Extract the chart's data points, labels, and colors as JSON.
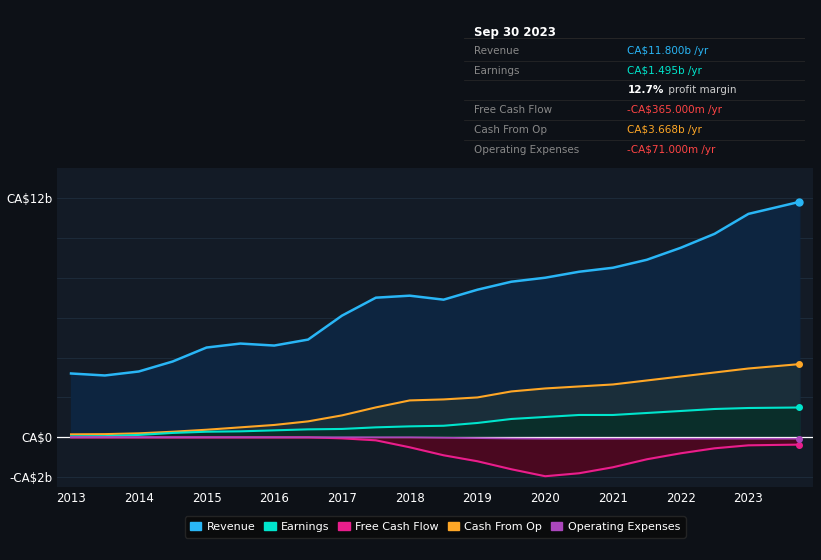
{
  "background_color": "#0d1117",
  "plot_bg_color": "#131b26",
  "grid_color": "#1e2d3d",
  "years": [
    2013,
    2013.5,
    2014,
    2014.5,
    2015,
    2015.5,
    2016,
    2016.5,
    2017,
    2017.5,
    2018,
    2018.5,
    2019,
    2019.5,
    2020,
    2020.5,
    2021,
    2021.5,
    2022,
    2022.5,
    2023,
    2023.75
  ],
  "revenue": [
    3.2,
    3.1,
    3.3,
    3.8,
    4.5,
    4.7,
    4.6,
    4.9,
    6.1,
    7.0,
    7.1,
    6.9,
    7.4,
    7.8,
    8.0,
    8.3,
    8.5,
    8.9,
    9.5,
    10.2,
    11.2,
    11.8
  ],
  "earnings": [
    0.05,
    0.06,
    0.12,
    0.22,
    0.28,
    0.3,
    0.35,
    0.4,
    0.42,
    0.5,
    0.55,
    0.58,
    0.72,
    0.92,
    1.02,
    1.12,
    1.12,
    1.22,
    1.32,
    1.42,
    1.47,
    1.495
  ],
  "free_cash_flow": [
    0.0,
    0.0,
    0.0,
    0.0,
    0.0,
    0.0,
    0.0,
    0.0,
    -0.05,
    -0.15,
    -0.5,
    -0.9,
    -1.2,
    -1.6,
    -1.95,
    -1.8,
    -1.5,
    -1.1,
    -0.8,
    -0.55,
    -0.4,
    -0.365
  ],
  "cash_from_op": [
    0.15,
    0.16,
    0.2,
    0.28,
    0.38,
    0.5,
    0.62,
    0.8,
    1.1,
    1.5,
    1.85,
    1.9,
    2.0,
    2.3,
    2.45,
    2.55,
    2.65,
    2.85,
    3.05,
    3.25,
    3.45,
    3.668
  ],
  "operating_expenses": [
    0.0,
    0.0,
    0.0,
    0.0,
    0.0,
    0.0,
    0.0,
    0.0,
    0.0,
    0.0,
    0.0,
    -0.02,
    -0.04,
    -0.06,
    -0.07,
    -0.07,
    -0.07,
    -0.07,
    -0.07,
    -0.07,
    -0.071,
    -0.071
  ],
  "revenue_color": "#29b6f6",
  "earnings_color": "#00e5cc",
  "free_cash_flow_color": "#e91e8c",
  "cash_from_op_color": "#ffa726",
  "operating_expenses_color": "#ab47bc",
  "revenue_fill": "#0d2540",
  "cfo_fill": "#1a2e3a",
  "earnings_fill": "#0a2e2a",
  "fcf_fill": "#4a0820",
  "ylim_min": -2.5,
  "ylim_max": 13.5,
  "ytick_vals": [
    -2,
    0,
    2,
    4,
    6,
    8,
    10,
    12
  ],
  "ytick_labels": [
    "-CA$2b",
    "CA$0",
    "",
    "",
    "",
    "",
    "",
    "CA$12b"
  ],
  "xtick_years": [
    2013,
    2014,
    2015,
    2016,
    2017,
    2018,
    2019,
    2020,
    2021,
    2022,
    2023
  ],
  "info_box_title": "Sep 30 2023",
  "info_rows": [
    {
      "label": "Revenue",
      "value": "CA$11.800b",
      "unit": " /yr",
      "value_color": "#29b6f6",
      "label_color": "#888888"
    },
    {
      "label": "Earnings",
      "value": "CA$1.495b",
      "unit": " /yr",
      "value_color": "#00e5cc",
      "label_color": "#888888"
    },
    {
      "label": "",
      "value": "12.7%",
      "unit": " profit margin",
      "value_color": "#ffffff",
      "label_color": "#888888",
      "bold_value": true
    },
    {
      "label": "Free Cash Flow",
      "value": "-CA$365.000m",
      "unit": " /yr",
      "value_color": "#ff4444",
      "label_color": "#888888"
    },
    {
      "label": "Cash From Op",
      "value": "CA$3.668b",
      "unit": " /yr",
      "value_color": "#ffa726",
      "label_color": "#888888"
    },
    {
      "label": "Operating Expenses",
      "value": "-CA$71.000m",
      "unit": " /yr",
      "value_color": "#ff4444",
      "label_color": "#888888"
    }
  ],
  "legend_items": [
    {
      "label": "Revenue",
      "color": "#29b6f6"
    },
    {
      "label": "Earnings",
      "color": "#00e5cc"
    },
    {
      "label": "Free Cash Flow",
      "color": "#e91e8c"
    },
    {
      "label": "Cash From Op",
      "color": "#ffa726"
    },
    {
      "label": "Operating Expenses",
      "color": "#ab47bc"
    }
  ]
}
